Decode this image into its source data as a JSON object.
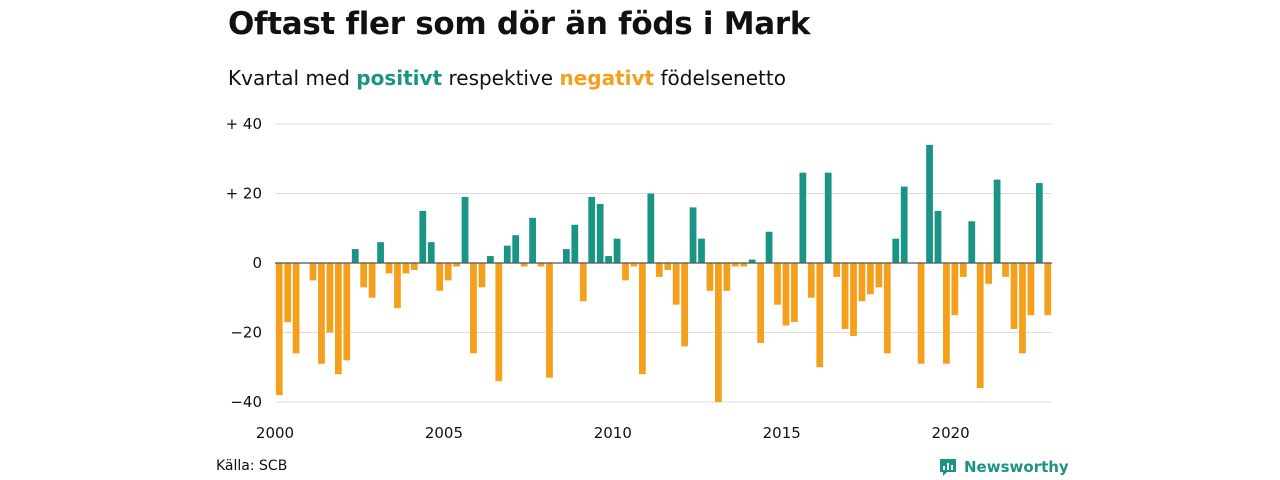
{
  "title": "Oftast fler som dör än föds i Mark",
  "subtitle": {
    "prefix": "Kvartal med ",
    "positive": "positivt",
    "middle": " respektive ",
    "negative": "negativt",
    "suffix": " födelsenetto"
  },
  "source": "Källa: SCB",
  "brand": {
    "name": "Newsworthy",
    "icon": "newsworthy-logo-icon"
  },
  "colors": {
    "positive": "#1a9484",
    "negative": "#f5a01d",
    "grid": "#dddddd",
    "zero_line": "#555555"
  },
  "chart_data": {
    "type": "bar",
    "title": "Oftast fler som dör än föds i Mark",
    "xlabel": "",
    "ylabel": "",
    "ylim": [
      -40,
      40
    ],
    "yticks": [
      {
        "value": 40,
        "label": "+ 40"
      },
      {
        "value": 20,
        "label": "+ 20"
      },
      {
        "value": 0,
        "label": "0"
      },
      {
        "value": -20,
        "label": "−20"
      },
      {
        "value": -40,
        "label": "−40"
      }
    ],
    "xticks": [
      {
        "value": 2000,
        "label": "2000"
      },
      {
        "value": 2005,
        "label": "2005"
      },
      {
        "value": 2010,
        "label": "2010"
      },
      {
        "value": 2015,
        "label": "2015"
      },
      {
        "value": 2020,
        "label": "2020"
      }
    ],
    "grid": true,
    "start_year": 2000,
    "values": [
      -38,
      -17,
      -26,
      0,
      -5,
      -29,
      -20,
      -32,
      -28,
      4,
      -7,
      -10,
      6,
      -3,
      -13,
      -3,
      -2,
      15,
      6,
      -8,
      -5,
      -1,
      19,
      -26,
      -7,
      2,
      -34,
      5,
      8,
      -1,
      13,
      -1,
      -33,
      0,
      4,
      11,
      -11,
      19,
      17,
      2,
      7,
      -5,
      -1,
      -32,
      20,
      -4,
      -2,
      -12,
      -24,
      16,
      7,
      -8,
      -40,
      -8,
      -1,
      -1,
      1,
      -23,
      9,
      -12,
      -18,
      -17,
      26,
      -10,
      -30,
      26,
      -4,
      -19,
      -21,
      -11,
      -9,
      -7,
      -26,
      7,
      22,
      0,
      -29,
      34,
      15,
      -29,
      -15,
      -4,
      12,
      -36,
      -6,
      24,
      -4,
      -19,
      -26,
      -15,
      23,
      -15
    ]
  }
}
